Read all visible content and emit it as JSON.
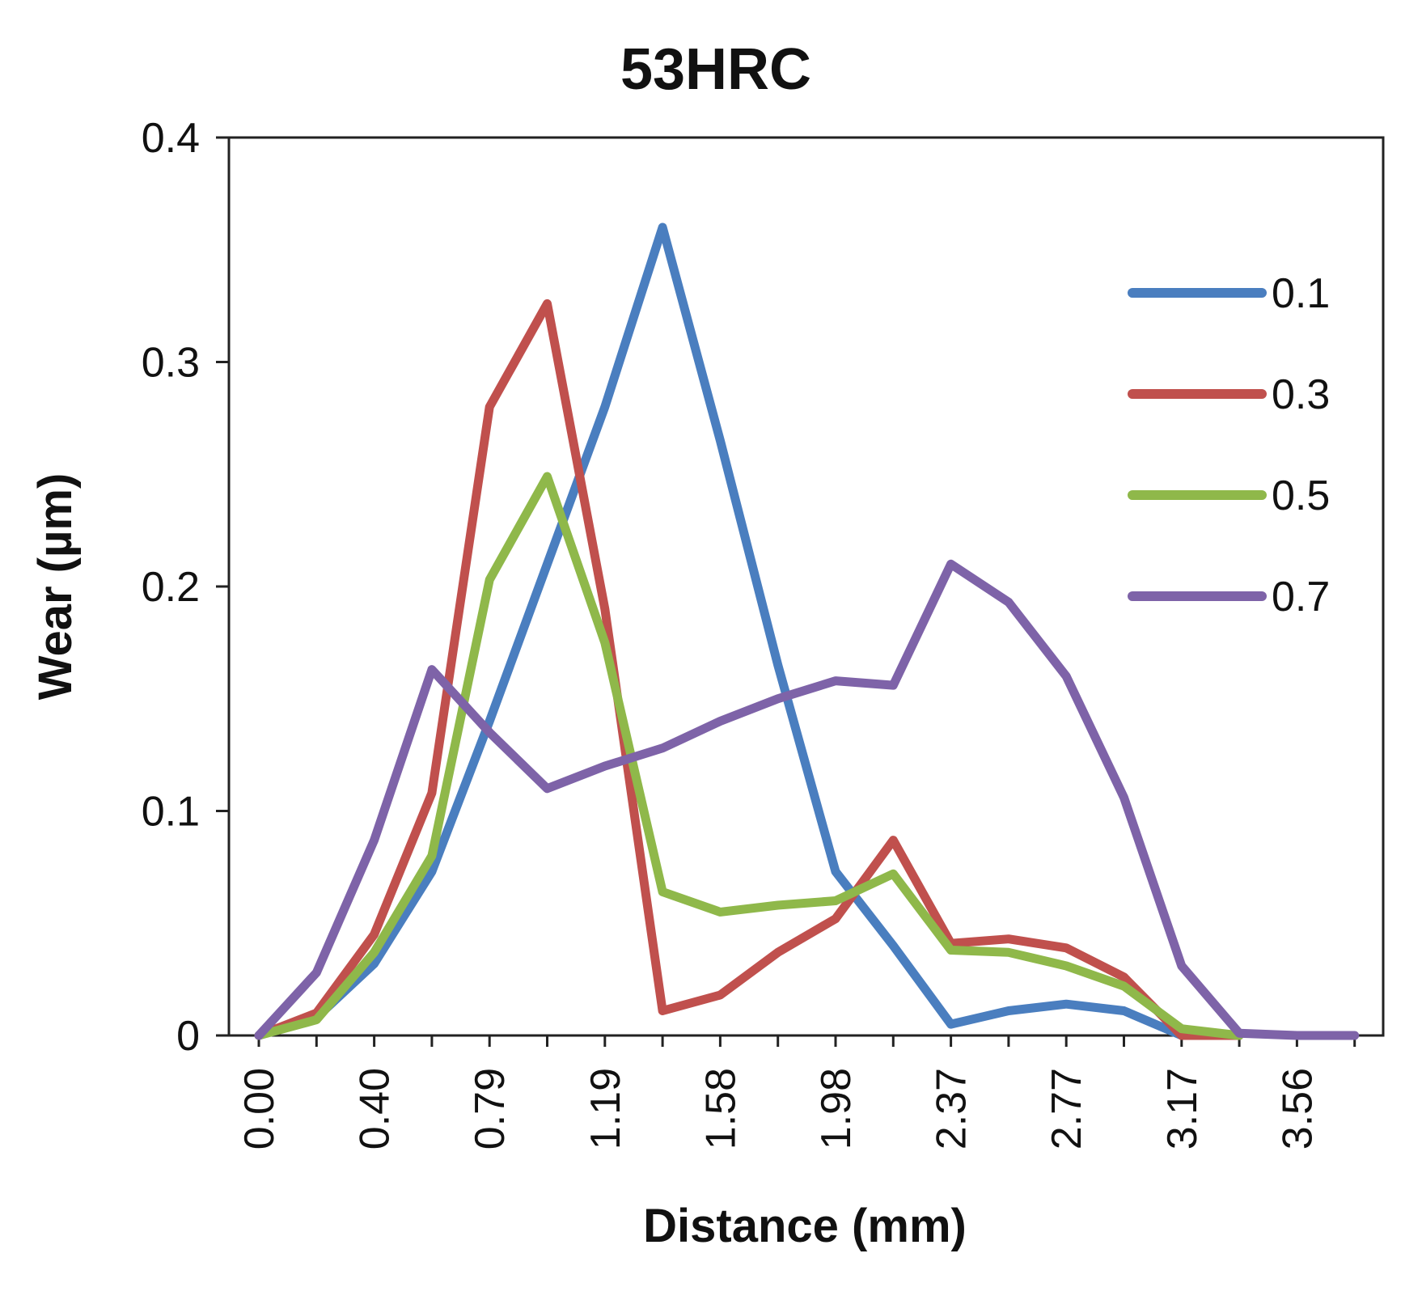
{
  "chart_data": {
    "type": "line",
    "title": "53HRC",
    "xlabel": "Distance (mm)",
    "ylabel": "Wear (µm)",
    "ylim": [
      0,
      0.4
    ],
    "yticks": [
      "0",
      "0.1",
      "0.2",
      "0.3",
      "0.4"
    ],
    "x": [
      0.0,
      0.2,
      0.4,
      0.59,
      0.79,
      0.99,
      1.19,
      1.39,
      1.58,
      1.78,
      1.98,
      2.18,
      2.37,
      2.57,
      2.77,
      2.97,
      3.17,
      3.37,
      3.56,
      3.76
    ],
    "xtick_labels": [
      "0.00",
      "0.40",
      "0.79",
      "1.19",
      "1.58",
      "1.98",
      "2.37",
      "2.77",
      "3.17",
      "3.56"
    ],
    "xtick_indices": [
      0,
      2,
      4,
      6,
      8,
      10,
      12,
      14,
      16,
      18
    ],
    "legend_position": "right",
    "series": [
      {
        "name": "0.1",
        "color": "#4a7ebf",
        "values": [
          0,
          0.008,
          0.032,
          0.073,
          0.14,
          0.21,
          0.28,
          0.36,
          0.265,
          0.165,
          0.073,
          0.04,
          0.005,
          0.011,
          0.014,
          0.011,
          0.0,
          0.0,
          null,
          null
        ]
      },
      {
        "name": "0.3",
        "color": "#c0504d",
        "values": [
          0,
          0.01,
          0.045,
          0.108,
          0.28,
          0.326,
          0.19,
          0.011,
          0.018,
          0.037,
          0.052,
          0.087,
          0.041,
          0.043,
          0.039,
          0.026,
          0.0,
          0.0,
          null,
          null
        ]
      },
      {
        "name": "0.5",
        "color": "#8fb84a",
        "values": [
          0,
          0.007,
          0.037,
          0.08,
          0.203,
          0.249,
          0.175,
          0.064,
          0.055,
          0.058,
          0.06,
          0.072,
          0.038,
          0.037,
          0.031,
          0.022,
          0.003,
          0.0,
          null,
          null
        ]
      },
      {
        "name": "0.7",
        "color": "#7e63a8",
        "values": [
          0,
          0.028,
          0.087,
          0.163,
          0.135,
          0.11,
          0.12,
          0.128,
          0.14,
          0.15,
          0.158,
          0.156,
          0.21,
          0.193,
          0.16,
          0.106,
          0.031,
          0.001,
          0.0,
          0.0
        ]
      }
    ]
  }
}
